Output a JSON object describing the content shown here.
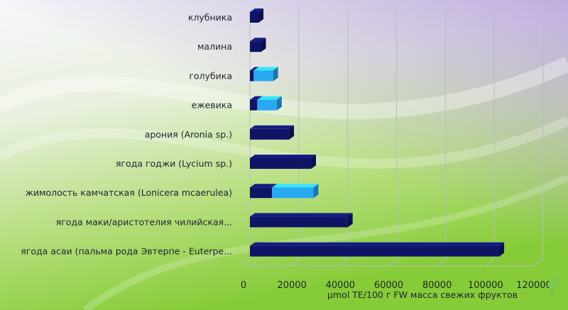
{
  "chart_data": {
    "type": "bar",
    "orientation": "horizontal",
    "categories": [
      "клубника",
      "малина",
      "голубика",
      "ежевика",
      "арония (Aronia sp.)",
      "ягода годжи (Lycium sp.)",
      "жимолость камчатская (Lonicera mcaerulea)",
      "ягода маки/аристотелия чилийская...",
      "ягода асаи (пальма рода Эвтерпе - Euterpe..."
    ],
    "series": [
      {
        "values": [
          3500,
          4500,
          1500,
          3000,
          16000,
          25000,
          9000,
          40000,
          102000
        ]
      },
      {
        "values": [
          0,
          0,
          8000,
          8000,
          0,
          0,
          17000,
          0,
          0
        ]
      }
    ],
    "stacked": true,
    "xlabel": "μmol TE/100 г FW масса свежих фруктов",
    "ylabel": "",
    "xlim": [
      0,
      120000
    ],
    "xticks": [
      0,
      20000,
      40000,
      60000,
      80000,
      100000,
      120000
    ],
    "grid": true,
    "legend": "none",
    "colors": {
      "series1": "#0f1565",
      "series2": "#29a9f2",
      "background_top": "#f4f5fb",
      "background_bottom": "#8ccf3e",
      "gridline": "#b8bcc4",
      "text": "#1f2430",
      "leaf_icon": "#7ec850"
    },
    "decoration": {
      "icon": "leaf-icon"
    }
  }
}
